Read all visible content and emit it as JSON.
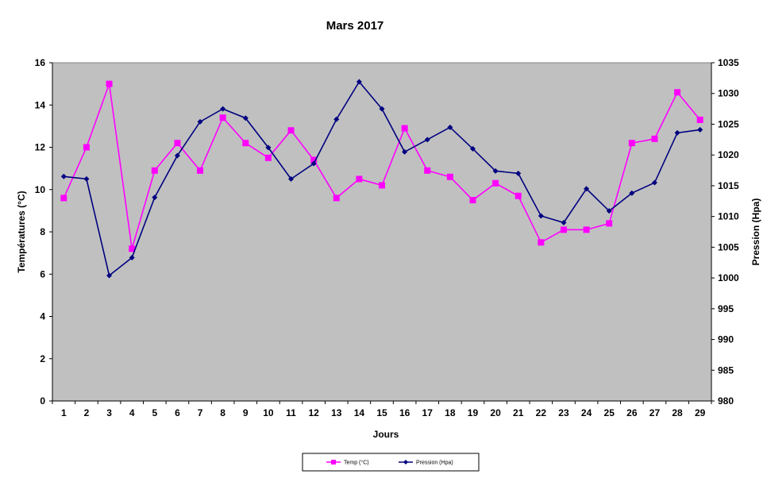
{
  "chart_data": {
    "type": "line",
    "title": "Mars 2017",
    "xlabel": "Jours",
    "ylabel_left": "Températures (°C)",
    "ylabel_right": "Pression (Hpa)",
    "x": [
      1,
      2,
      3,
      4,
      5,
      6,
      7,
      8,
      9,
      10,
      11,
      12,
      13,
      14,
      15,
      16,
      17,
      18,
      19,
      20,
      21,
      22,
      23,
      24,
      25,
      26,
      27,
      28,
      29
    ],
    "ylim_left": [
      0,
      16
    ],
    "yticks_left": [
      "0",
      "2",
      "4",
      "6",
      "8",
      "10",
      "12",
      "14",
      "16"
    ],
    "ylim_right": [
      980,
      1035
    ],
    "yticks_right": [
      "980",
      "985",
      "990",
      "995",
      "1000",
      "1005",
      "1010",
      "1015",
      "1020",
      "1025",
      "1030",
      "1035"
    ],
    "grid": false,
    "plot_background": "#C0C0C0",
    "legend_position": "bottom",
    "series": [
      {
        "name": "Temp (°C)",
        "axis": "left",
        "color": "#FF00FF",
        "marker": "square",
        "values": [
          9.6,
          12.0,
          15.0,
          7.2,
          10.9,
          12.2,
          10.9,
          13.4,
          12.2,
          11.5,
          12.8,
          11.4,
          9.6,
          10.5,
          10.2,
          12.9,
          10.9,
          10.6,
          9.5,
          10.3,
          9.7,
          7.5,
          8.1,
          8.1,
          8.4,
          12.2,
          12.4,
          14.6,
          13.3
        ]
      },
      {
        "name": "Pression (Hpa)",
        "axis": "right",
        "color": "#000080",
        "marker": "diamond",
        "values": [
          1016.5,
          1016.1,
          1000.4,
          1003.3,
          1013.1,
          1019.9,
          1025.4,
          1027.5,
          1026.0,
          1021.2,
          1016.1,
          1018.6,
          1025.8,
          1031.9,
          1027.5,
          1020.5,
          1022.5,
          1024.5,
          1021.0,
          1017.4,
          1017.0,
          1010.1,
          1009.0,
          1014.5,
          1010.9,
          1013.8,
          1015.5,
          1023.6,
          1024.1
        ]
      }
    ]
  }
}
